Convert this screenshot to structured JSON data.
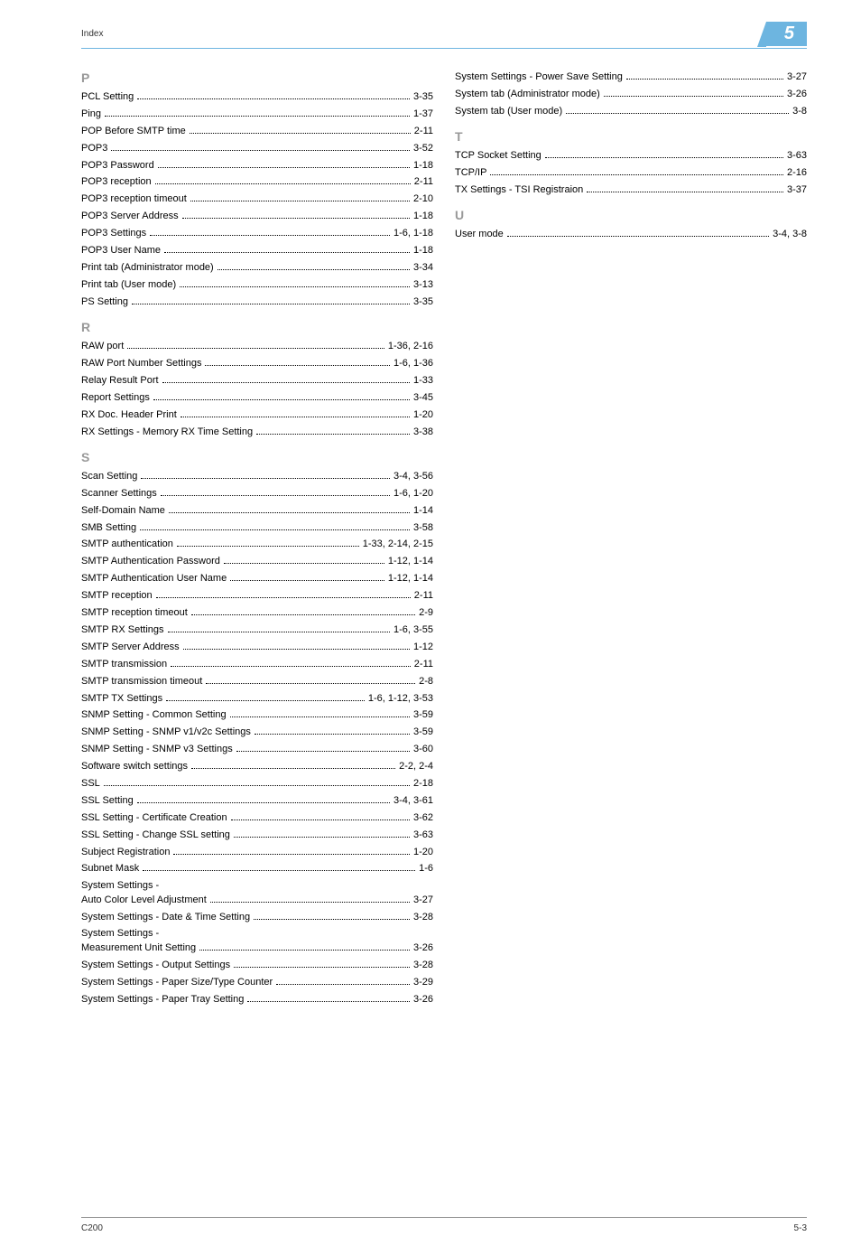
{
  "header": {
    "label": "Index",
    "page_number": "5"
  },
  "sections": [
    {
      "letter": "P",
      "col": 0,
      "entries": [
        {
          "label": "PCL Setting",
          "page": "3-35"
        },
        {
          "label": "Ping",
          "page": "1-37"
        },
        {
          "label": "POP Before SMTP time",
          "page": "2-11"
        },
        {
          "label": "POP3",
          "page": "3-52"
        },
        {
          "label": "POP3 Password",
          "page": "1-18"
        },
        {
          "label": "POP3 reception",
          "page": "2-11"
        },
        {
          "label": "POP3 reception timeout",
          "page": "2-10"
        },
        {
          "label": "POP3 Server Address",
          "page": "1-18"
        },
        {
          "label": "POP3 Settings",
          "page": "1-6, 1-18"
        },
        {
          "label": "POP3 User Name",
          "page": "1-18"
        },
        {
          "label": "Print tab (Administrator mode)",
          "page": "3-34"
        },
        {
          "label": "Print tab (User mode)",
          "page": "3-13"
        },
        {
          "label": "PS Setting",
          "page": "3-35"
        }
      ]
    },
    {
      "letter": "R",
      "col": 0,
      "entries": [
        {
          "label": "RAW port",
          "page": "1-36, 2-16"
        },
        {
          "label": "RAW Port Number Settings",
          "page": "1-6, 1-36"
        },
        {
          "label": "Relay Result Port",
          "page": "1-33"
        },
        {
          "label": "Report Settings",
          "page": "3-45"
        },
        {
          "label": "RX Doc. Header Print",
          "page": "1-20"
        },
        {
          "label": "RX Settings - Memory RX Time Setting",
          "page": "3-38"
        }
      ]
    },
    {
      "letter": "S",
      "col": 0,
      "entries": [
        {
          "label": "Scan Setting",
          "page": "3-4, 3-56"
        },
        {
          "label": "Scanner Settings",
          "page": "1-6, 1-20"
        },
        {
          "label": "Self-Domain Name",
          "page": "1-14"
        },
        {
          "label": "SMB Setting",
          "page": "3-58"
        },
        {
          "label": "SMTP authentication",
          "page": "1-33, 2-14, 2-15"
        },
        {
          "label": "SMTP Authentication Password",
          "page": "1-12, 1-14"
        },
        {
          "label": "SMTP Authentication User Name",
          "page": "1-12, 1-14"
        },
        {
          "label": "SMTP reception",
          "page": "2-11"
        },
        {
          "label": "SMTP reception timeout",
          "page": "2-9"
        },
        {
          "label": "SMTP RX Settings",
          "page": "1-6, 3-55"
        },
        {
          "label": "SMTP Server Address",
          "page": "1-12"
        },
        {
          "label": "SMTP transmission",
          "page": "2-11"
        },
        {
          "label": "SMTP transmission timeout",
          "page": "2-8"
        },
        {
          "label": "SMTP TX Settings",
          "page": "1-6, 1-12, 3-53"
        },
        {
          "label": "SNMP Setting - Common Setting",
          "page": "3-59"
        },
        {
          "label": "SNMP Setting - SNMP v1/v2c Settings",
          "page": "3-59"
        },
        {
          "label": "SNMP Setting - SNMP v3 Settings",
          "page": "3-60"
        },
        {
          "label": "Software switch settings",
          "page": "2-2, 2-4"
        },
        {
          "label": "SSL",
          "page": "2-18"
        },
        {
          "label": "SSL Setting",
          "page": "3-4, 3-61"
        },
        {
          "label": "SSL Setting - Certificate Creation",
          "page": "3-62"
        },
        {
          "label": "SSL Setting - Change SSL setting",
          "page": "3-63"
        },
        {
          "label": "Subject Registration",
          "page": "1-20"
        },
        {
          "label": "Subnet Mask",
          "page": "1-6"
        },
        {
          "label": "System Settings -",
          "label2": "Auto Color Level Adjustment",
          "page": "3-27",
          "multiline": true
        },
        {
          "label": "System Settings - Date & Time Setting",
          "page": "3-28"
        },
        {
          "label": "System Settings -",
          "label2": "Measurement Unit Setting",
          "page": "3-26",
          "multiline": true
        },
        {
          "label": "System Settings - Output Settings",
          "page": "3-28"
        },
        {
          "label": "System Settings - Paper Size/Type Counter",
          "page": "3-29"
        },
        {
          "label": "System Settings - Paper Tray Setting",
          "page": "3-26"
        }
      ]
    },
    {
      "letter": "",
      "col": 1,
      "entries": [
        {
          "label": "System Settings - Power Save Setting",
          "page": "3-27"
        },
        {
          "label": "System tab (Administrator mode)",
          "page": "3-26"
        },
        {
          "label": "System tab (User mode)",
          "page": "3-8"
        }
      ]
    },
    {
      "letter": "T",
      "col": 1,
      "entries": [
        {
          "label": "TCP Socket Setting",
          "page": "3-63"
        },
        {
          "label": "TCP/IP",
          "page": "2-16"
        },
        {
          "label": "TX Settings - TSI Registraion",
          "page": "3-37"
        }
      ]
    },
    {
      "letter": "U",
      "col": 1,
      "entries": [
        {
          "label": "User mode",
          "page": "3-4, 3-8"
        }
      ]
    }
  ],
  "footer": {
    "left": "C200",
    "right": "5-3"
  },
  "colors": {
    "header_blue": "#6db5e0",
    "section_letter_gray": "#999999",
    "text": "#000000",
    "body_bg": "#ffffff"
  },
  "typography": {
    "body_fontsize": 11,
    "section_letter_fontsize": 14,
    "header_number_fontsize": 20,
    "footer_fontsize": 10
  }
}
